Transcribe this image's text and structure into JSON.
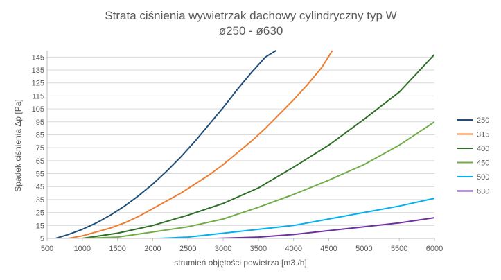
{
  "chart_data": {
    "type": "line",
    "title": "Strata ciśnienia wywietrzak dachowy cylindryczny typ W",
    "subtitle": "ø250 - ø630",
    "xlabel": "strumień objętości powietrza [m3 /h]",
    "ylabel": "Spadek ciśnienia Δp [Pa]",
    "xlim": [
      500,
      6000
    ],
    "ylim": [
      5,
      150
    ],
    "x_ticks": [
      "500",
      "1000",
      "1500",
      "2000",
      "2500",
      "3000",
      "3500",
      "4000",
      "4500",
      "5000",
      "5500",
      "6000"
    ],
    "y_ticks": [
      "5",
      "15",
      "25",
      "35",
      "45",
      "55",
      "65",
      "75",
      "85",
      "95",
      "105",
      "115",
      "125",
      "135",
      "145"
    ],
    "grid": true,
    "legend_position": "right",
    "series": [
      {
        "name": "250",
        "color": "#1f4e79",
        "x": [
          620,
          800,
          1000,
          1200,
          1400,
          1600,
          1800,
          2000,
          2200,
          2400,
          2600,
          2800,
          3000,
          3200,
          3400,
          3600,
          3750
        ],
        "y": [
          5,
          8,
          12,
          17,
          23,
          30,
          38,
          47,
          57,
          68,
          80,
          93,
          106,
          120,
          133,
          145,
          150
        ]
      },
      {
        "name": "315",
        "color": "#ed7d31",
        "x": [
          800,
          1000,
          1200,
          1400,
          1600,
          1800,
          2000,
          2200,
          2400,
          2600,
          2800,
          3000,
          3200,
          3400,
          3600,
          3800,
          4000,
          4200,
          4400,
          4550
        ],
        "y": [
          5,
          7,
          10,
          13,
          17,
          22,
          28,
          34,
          40,
          47,
          54,
          62,
          71,
          80,
          90,
          101,
          112,
          124,
          137,
          150
        ]
      },
      {
        "name": "400",
        "color": "#2e6f27",
        "x": [
          1000,
          1500,
          2000,
          2500,
          3000,
          3500,
          4000,
          4500,
          5000,
          5500,
          6000
        ],
        "y": [
          5,
          9,
          15,
          23,
          32,
          44,
          60,
          77,
          97,
          118,
          147
        ]
      },
      {
        "name": "450",
        "color": "#70ad47",
        "x": [
          1000,
          1500,
          2000,
          2500,
          3000,
          3500,
          4000,
          4500,
          5000,
          5500,
          6000
        ],
        "y": [
          5,
          6,
          10,
          14,
          20,
          29,
          39,
          50,
          62,
          77,
          95
        ]
      },
      {
        "name": "500",
        "color": "#00b0f0",
        "x": [
          2100,
          2500,
          3000,
          3500,
          4000,
          4500,
          5000,
          5500,
          6000
        ],
        "y": [
          5,
          6,
          9,
          12,
          15,
          20,
          25,
          30,
          36
        ]
      },
      {
        "name": "630",
        "color": "#7030a0",
        "x": [
          2900,
          3500,
          4000,
          4500,
          5000,
          5500,
          6000
        ],
        "y": [
          5,
          6,
          8,
          11,
          14,
          17,
          21
        ]
      }
    ]
  }
}
